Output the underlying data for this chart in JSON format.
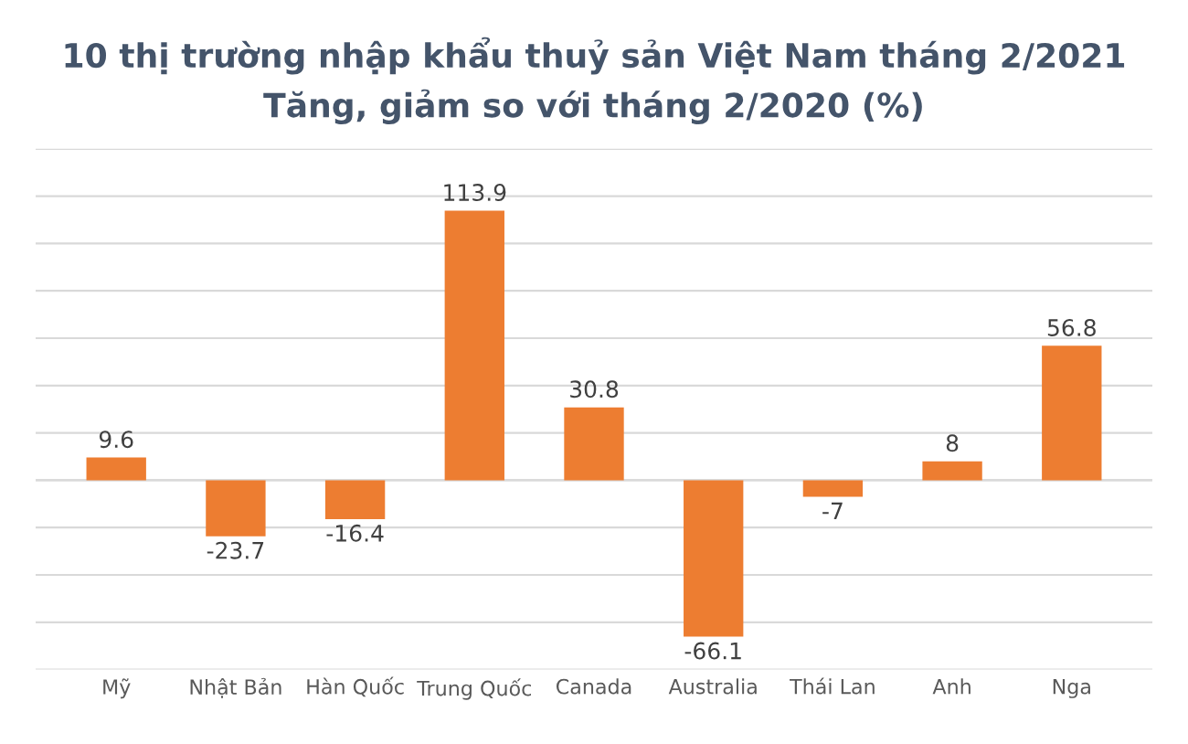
{
  "chart_data": {
    "type": "bar",
    "title": "10 thị trường nhập khẩu thuỷ sản Việt Nam tháng 2/2021",
    "subtitle": "Tăng, giảm so với tháng 2/2020 (%)",
    "categories": [
      "Mỹ",
      "Nhật Bản",
      "Hàn Quốc",
      "Trung Quốc",
      "Canada",
      "Australia",
      "Thái Lan",
      "Anh",
      "Nga"
    ],
    "values": [
      9.6,
      -23.7,
      -16.4,
      113.9,
      30.8,
      -66.1,
      -7,
      8,
      56.8
    ],
    "color": "#ed7d31",
    "ylim": [
      -80,
      140
    ],
    "yticks": [
      {
        "value": -80,
        "label": null
      },
      {
        "value": -60,
        "label": null
      },
      {
        "value": -40,
        "label": null
      },
      {
        "value": -20,
        "label": null
      },
      {
        "value": 0,
        "label": null
      },
      {
        "value": 20,
        "label": null
      },
      {
        "value": 40,
        "label": null
      },
      {
        "value": 60,
        "label": null
      },
      {
        "value": 80,
        "label": null
      },
      {
        "value": 100,
        "label": null
      },
      {
        "value": 120,
        "label": null
      },
      {
        "value": 140,
        "label": null
      }
    ],
    "tick_labels": "x",
    "grid": "y",
    "data_labels": true
  }
}
